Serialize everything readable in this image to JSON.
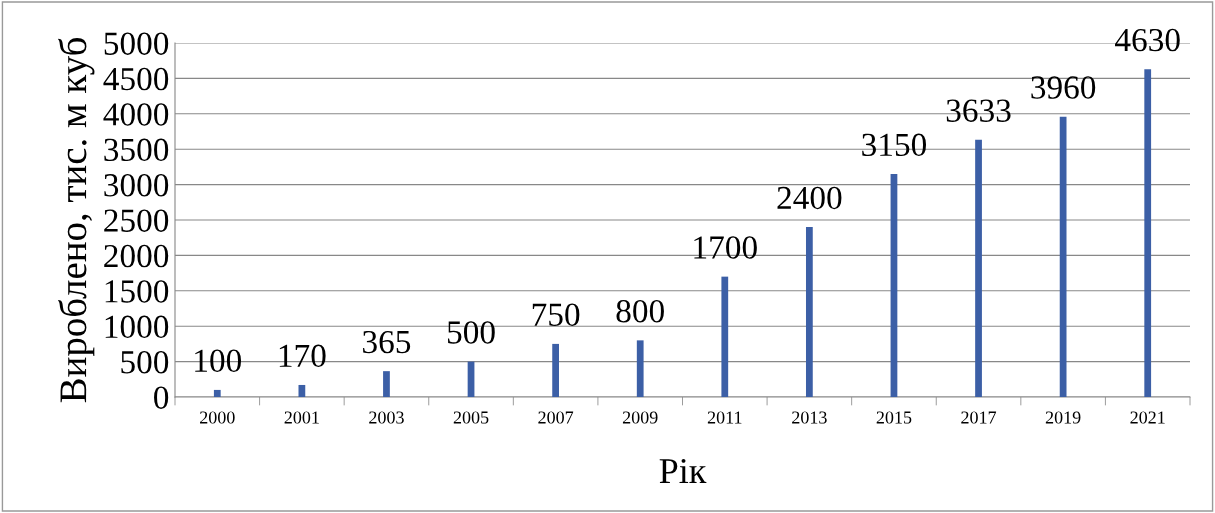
{
  "chart_data": {
    "type": "bar",
    "categories": [
      "2000",
      "2001",
      "2003",
      "2005",
      "2007",
      "2009",
      "2011",
      "2013",
      "2015",
      "2017",
      "2019",
      "2021"
    ],
    "values": [
      100,
      170,
      365,
      500,
      750,
      800,
      1700,
      2400,
      3150,
      3633,
      3960,
      4630
    ],
    "color": "#3c5fa6",
    "xlabel": "Рік",
    "ylabel": "Вироблено, тис. м куб",
    "ylim": [
      0,
      5000
    ],
    "yticks": [
      0,
      500,
      1000,
      1500,
      2000,
      2500,
      3000,
      3500,
      4000,
      4500,
      5000
    ],
    "grid": "y",
    "data_labels": true
  }
}
